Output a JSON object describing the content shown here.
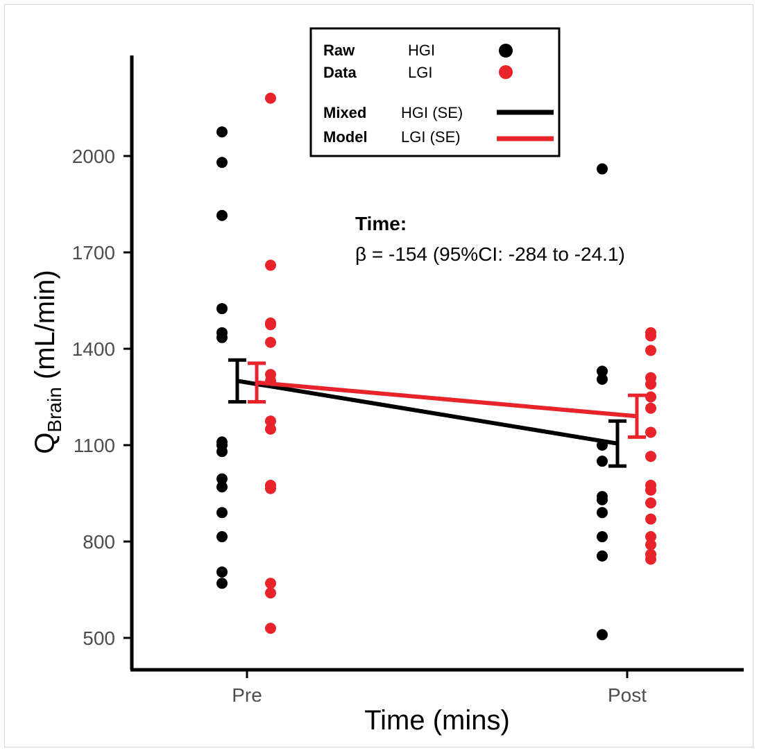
{
  "chart_data": {
    "type": "scatter",
    "xlabel": "Time (mins)",
    "ylabel_main": "Q",
    "ylabel_sub": "Brain",
    "ylabel_unit": " (mL/min)",
    "categories": [
      "Pre",
      "Post"
    ],
    "y_ticks": [
      "500",
      "800",
      "1100",
      "1400",
      "1700",
      "2000"
    ],
    "ylim": [
      470,
      2300
    ],
    "grid": false,
    "legend_position": "top",
    "colors": {
      "HGI": "#000000",
      "LGI": "#e8232a"
    },
    "raw_data": [
      {
        "name": "HGI",
        "points": {
          "Pre": [
            2075,
            1980,
            1815,
            1525,
            1450,
            1435,
            1110,
            1100,
            1080,
            995,
            970,
            890,
            815,
            705,
            670
          ],
          "Post": [
            1960,
            1330,
            1305,
            1100,
            1050,
            940,
            930,
            890,
            815,
            755,
            510
          ]
        }
      },
      {
        "name": "LGI",
        "points": {
          "Pre": [
            2180,
            1660,
            1480,
            1475,
            1420,
            1320,
            1300,
            1175,
            1150,
            975,
            965,
            670,
            640,
            530
          ],
          "Post": [
            1450,
            1440,
            1395,
            1310,
            1290,
            1250,
            1215,
            1140,
            1065,
            975,
            960,
            920,
            870,
            815,
            790,
            760,
            745
          ]
        }
      }
    ],
    "mixed_model": [
      {
        "name": "HGI",
        "means": [
          1300,
          1105
        ],
        "se": [
          65,
          70
        ]
      },
      {
        "name": "LGI",
        "means": [
          1295,
          1190
        ],
        "se": [
          60,
          65
        ]
      }
    ],
    "legend": {
      "raw_label_1": "Raw",
      "raw_label_2": "Data",
      "model_label_1": "Mixed",
      "model_label_2": "Model",
      "hgi": "HGI",
      "lgi": "LGI",
      "hgi_se": "HGI (SE)",
      "lgi_se": "LGI (SE)"
    },
    "annotation": {
      "title": "Time:",
      "text": "β = -154 (95%CI: -284 to -24.1)"
    }
  }
}
